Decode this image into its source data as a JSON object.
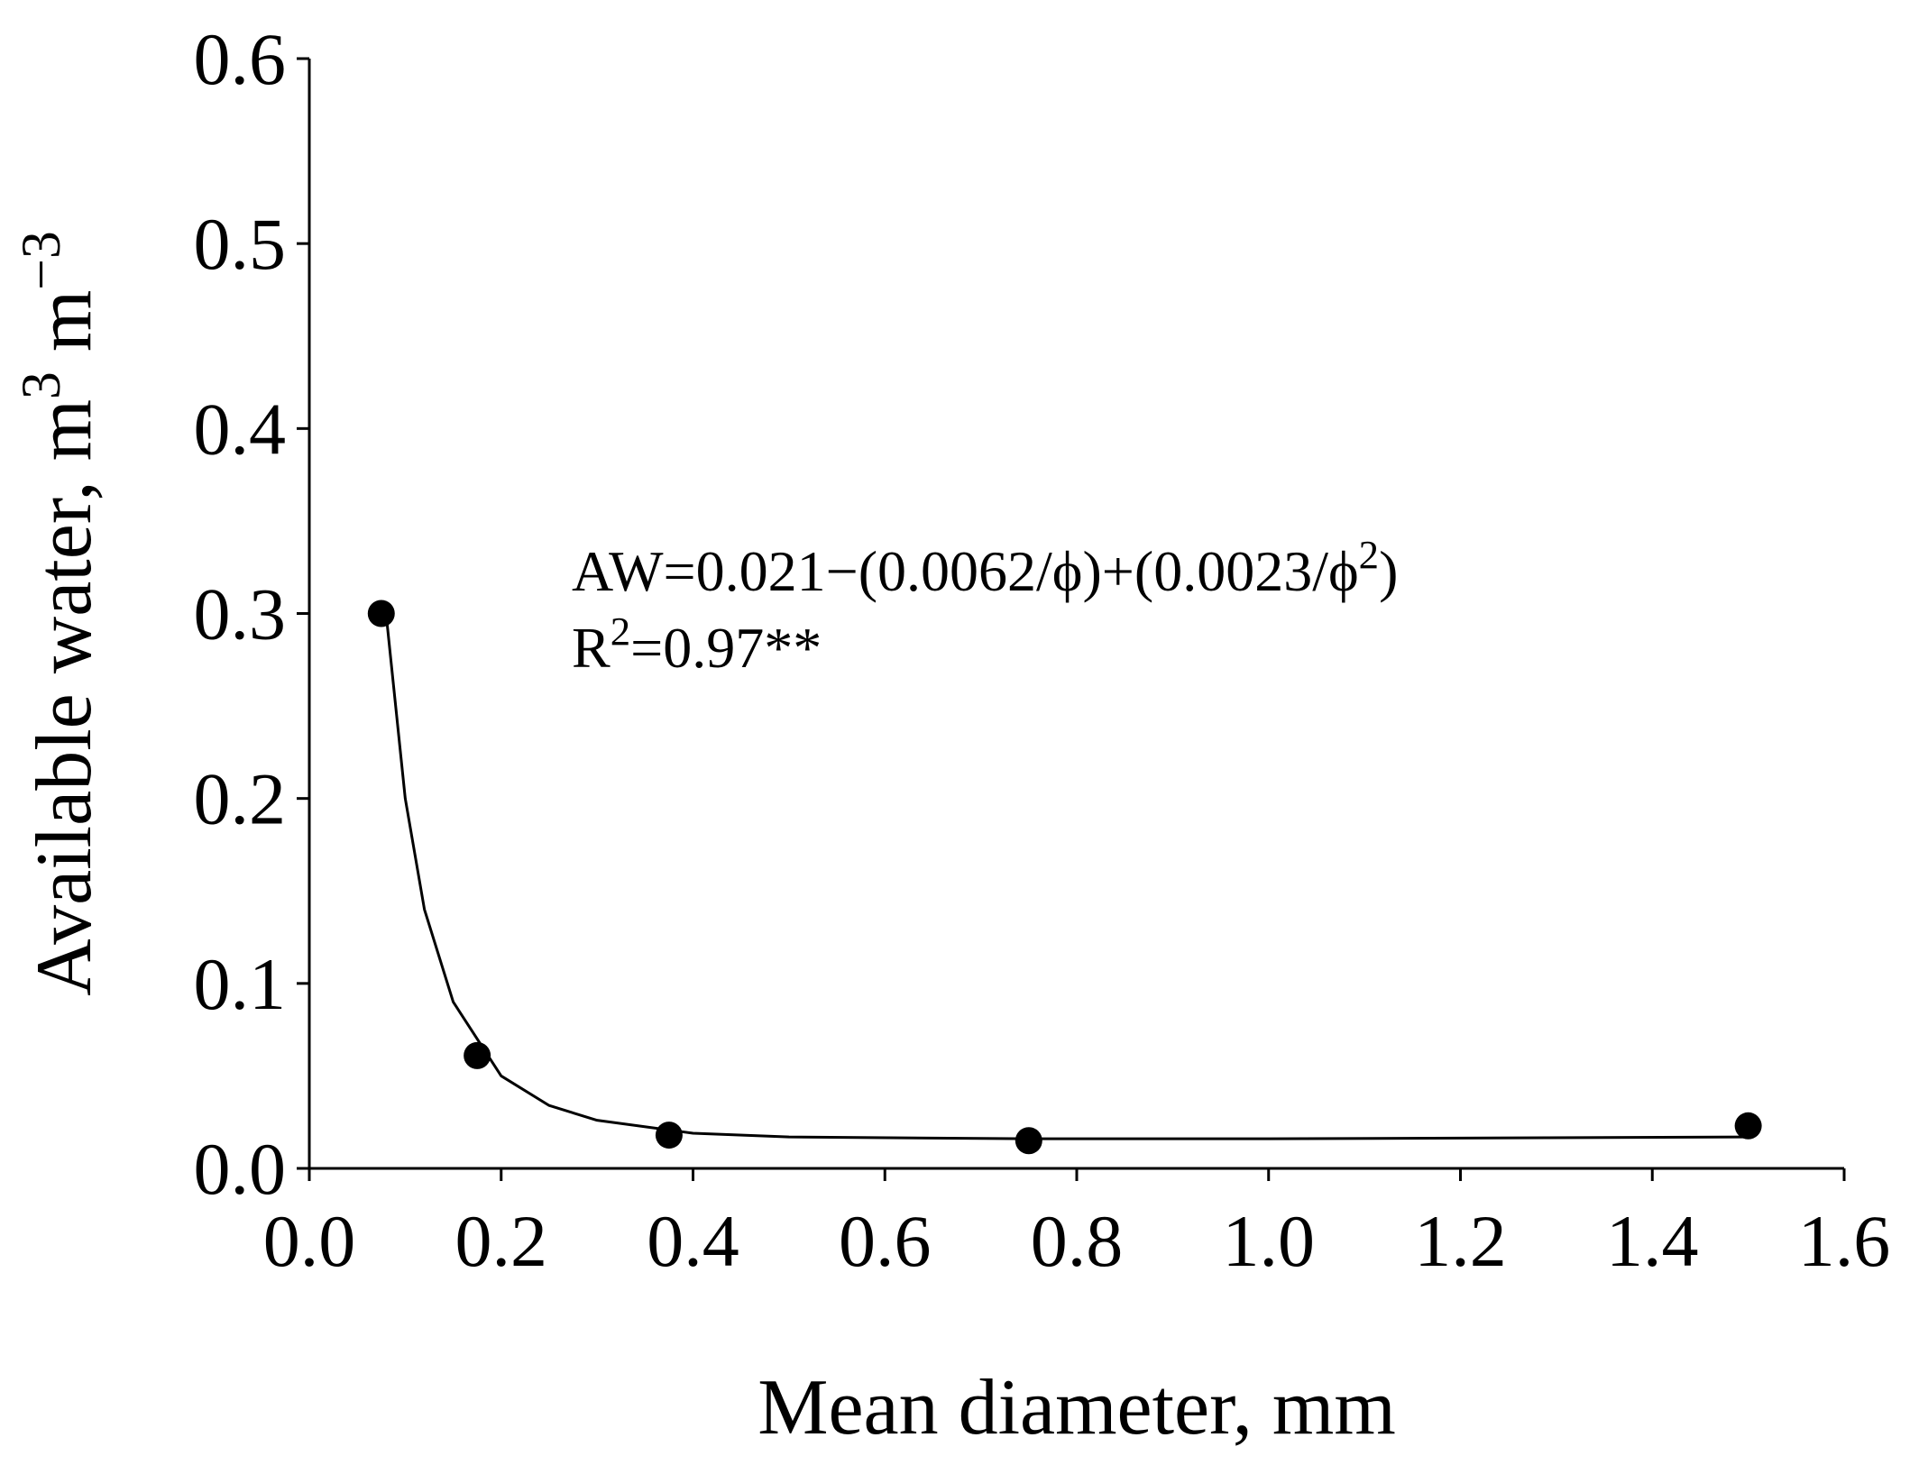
{
  "chart_data": {
    "type": "scatter",
    "xlabel": "Mean diameter, mm",
    "ylabel": [
      "Available water, m",
      "3",
      " m",
      "−3"
    ],
    "annotations": [
      [
        "AW=0.021−(0.0062/ϕ)+(0.0023/ϕ",
        "2",
        ")"
      ],
      [
        "R",
        "2",
        "=0.97**"
      ]
    ],
    "series": [
      {
        "color": "#000000",
        "marker": "circle",
        "x": [
          0.075,
          0.175,
          0.375,
          0.75,
          1.5
        ],
        "values": [
          0.3,
          0.061,
          0.018,
          0.015,
          0.023
        ]
      },
      {
        "color": "#000000",
        "marker": "line",
        "x": [
          0.08,
          0.1,
          0.12,
          0.15,
          0.2,
          0.25,
          0.3,
          0.4,
          0.5,
          0.75,
          1.0,
          1.5
        ],
        "values": [
          0.3,
          0.2,
          0.14,
          0.09,
          0.05,
          0.034,
          0.026,
          0.019,
          0.017,
          0.016,
          0.016,
          0.017
        ]
      }
    ],
    "xlim": [
      0,
      1.6
    ],
    "ylim": [
      0,
      0.6
    ],
    "xticks": [
      {
        "value": 0,
        "label": "0.0"
      },
      0.2,
      0.4,
      0.6,
      0.8,
      {
        "value": 1,
        "label": "1.0"
      },
      1.2,
      1.4,
      1.6
    ],
    "yticks": [
      {
        "value": 0,
        "label": "0.0"
      },
      0.1,
      0.2,
      0.3,
      0.4,
      0.5,
      0.6
    ],
    "grid": false
  }
}
